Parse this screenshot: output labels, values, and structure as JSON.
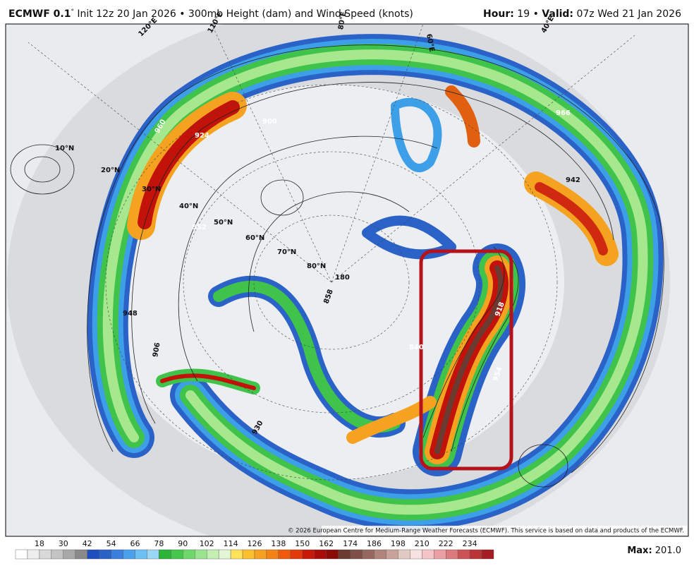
{
  "header": {
    "model": "ECMWF 0.1",
    "degree": "°",
    "description": " Init 12z 20 Jan 2026 • 300mb Height (dam) and Wind Speed (knots)",
    "hour_label": "Hour:",
    "hour_value": " 19 • ",
    "valid_label": "Valid:",
    "valid_value": " 07z Wed 21 Jan 2026"
  },
  "map": {
    "labels": [
      "10°N",
      "20°N",
      "30°N",
      "40°N",
      "50°N",
      "60°N",
      "70°N",
      "80°N",
      "180",
      "924",
      "960",
      "900",
      "852",
      "948",
      "906",
      "930",
      "966",
      "942",
      "918",
      "954",
      "840",
      "858",
      "120°E",
      "110°E",
      "80°E",
      "60°E",
      "40°E"
    ],
    "copyright": "© 2026 European Centre for Medium-Range Weather Forecasts (ECMWF). This service is based on data and products of the ECMWF."
  },
  "colorbar": {
    "ticks": [
      18,
      30,
      42,
      54,
      66,
      78,
      90,
      102,
      114,
      126,
      138,
      150,
      162,
      174,
      186,
      198,
      210,
      222,
      234
    ]
  },
  "max": {
    "label": "Max",
    "separator": ":",
    "value": "201.0"
  }
}
